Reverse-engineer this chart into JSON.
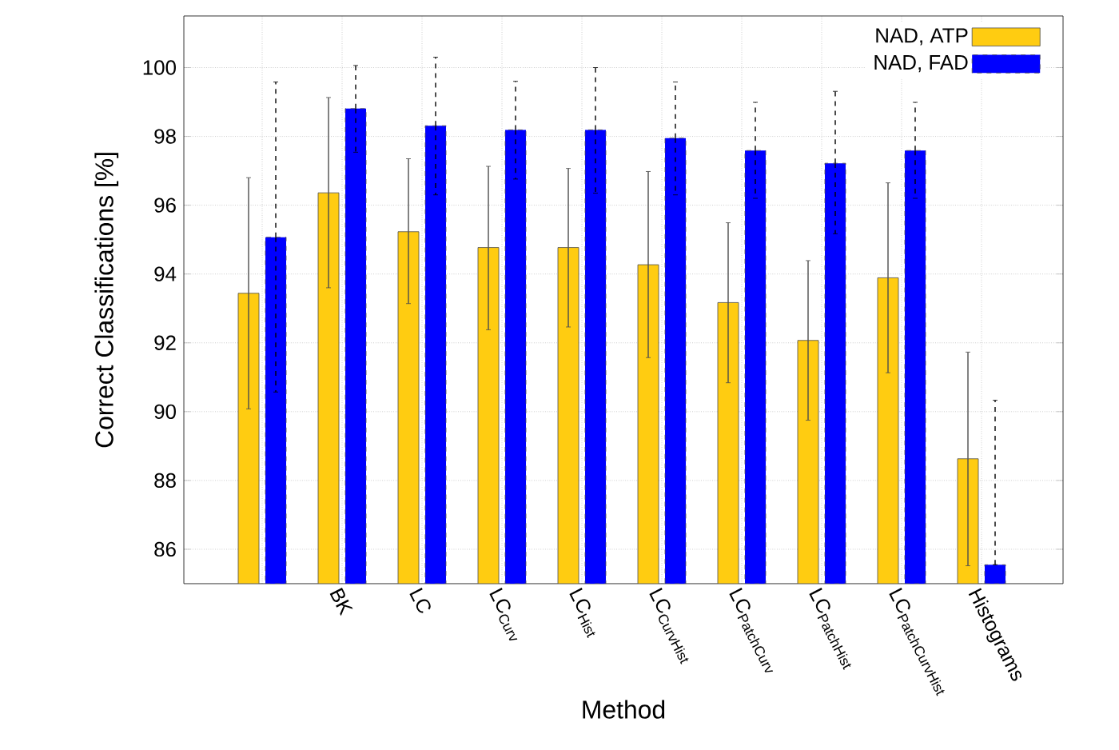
{
  "chart_data": {
    "type": "bar",
    "xlabel": "Method",
    "ylabel": "Correct Classifications [%]",
    "categories": [
      null,
      "BK",
      "LC",
      "\\mathrm{LC}_{\\mathrm{Curv}}",
      "\\mathrm{LC}_{\\mathrm{Hist}}",
      "\\mathrm{LC}_{\\mathrm{CurvHist}}",
      "\\mathrm{LC}_{\\mathrm{PatchCurv}}",
      "\\mathrm{LC}_{\\mathrm{PatchHist}}",
      "\\mathrm{LC}_{\\mathrm{PatchCurvHist}}",
      "Histograms"
    ],
    "series": [
      {
        "name": "NAD, ATP",
        "color": "#ffcc11",
        "line_style": "solid",
        "values": [
          93.44,
          96.36,
          95.23,
          94.77,
          94.77,
          94.27,
          93.17,
          92.07,
          93.89,
          88.63
        ],
        "errors": [
          [
            90.08,
            96.8
          ],
          [
            93.6,
            99.13
          ],
          [
            93.14,
            97.35
          ],
          [
            92.38,
            97.13
          ],
          [
            92.46,
            97.07
          ],
          [
            91.57,
            96.98
          ],
          [
            90.84,
            95.49
          ],
          [
            89.75,
            94.39
          ],
          [
            91.13,
            96.65
          ],
          [
            85.52,
            91.73
          ]
        ]
      },
      {
        "name": "NAD, FAD",
        "color": "#0000ff",
        "line_style": "dashed",
        "values": [
          95.07,
          98.81,
          98.31,
          98.19,
          98.19,
          97.95,
          97.59,
          97.22,
          97.59,
          85.55
        ],
        "errors": [
          [
            90.57,
            99.58
          ],
          [
            97.54,
            100.06
          ],
          [
            96.3,
            100.3
          ],
          [
            96.76,
            99.6
          ],
          [
            96.35,
            100.0
          ],
          [
            96.3,
            99.58
          ],
          [
            96.2,
            98.99
          ],
          [
            95.17,
            99.31
          ],
          [
            96.2,
            98.99
          ],
          [
            85.55,
            90.33
          ]
        ]
      }
    ],
    "ylim": [
      85,
      101.5
    ],
    "yticks": [
      86,
      88,
      90,
      92,
      94,
      96,
      98,
      100
    ],
    "grid": true,
    "legend": "top right"
  }
}
